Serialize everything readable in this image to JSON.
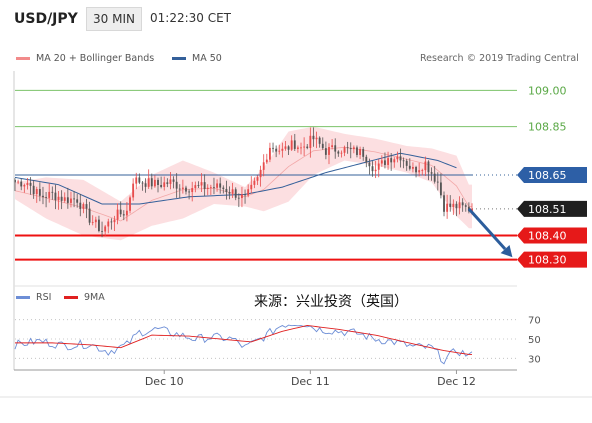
{
  "header": {
    "symbol": "USD/JPY",
    "timeframe": "30 MIN",
    "time": "01:22:30 CET"
  },
  "legend_main": [
    {
      "label": "MA 20 + Bollinger Bands",
      "color": "#f28b8b"
    },
    {
      "label": "MA 50",
      "color": "#34609a"
    }
  ],
  "credit": "Research © 2019 Trading Central",
  "legend_rsi": [
    {
      "label": "RSI",
      "color": "#6d8ed6"
    },
    {
      "label": "9MA",
      "color": "#e02020"
    }
  ],
  "annotation": "来源：兴业投资（英国）",
  "colors": {
    "bull": "#e74c4c",
    "bear": "#555555",
    "green_level": "#7cc36a",
    "ma50": "#34609a",
    "band": "#fbd9dc",
    "red_level": "#ee1111",
    "arrow": "#2c5d9c"
  },
  "chart_data": [
    {
      "type": "candlestick",
      "title": "USD/JPY",
      "ylim": [
        108.22,
        109.08
      ],
      "x_ticks": [
        {
          "label": "Dec 10",
          "x": 48
        },
        {
          "label": "Dec 11",
          "x": 95
        },
        {
          "label": "Dec 12",
          "x": 142
        }
      ],
      "levels": [
        {
          "value": 109.0,
          "label": "109.00",
          "style": "green"
        },
        {
          "value": 108.85,
          "label": "108.85",
          "style": "green"
        },
        {
          "value": 108.65,
          "label": "108.65",
          "style": "resistance"
        },
        {
          "value": 108.51,
          "label": "108.51",
          "style": "last"
        },
        {
          "value": 108.4,
          "label": "108.40",
          "style": "support"
        },
        {
          "value": 108.3,
          "label": "108.30",
          "style": "support"
        }
      ],
      "last_price": 108.51,
      "forecast_arrow": {
        "from": [
          146,
          108.51
        ],
        "to": [
          160,
          108.31
        ]
      },
      "x_count": 148,
      "bollinger_anchors": [
        {
          "x": 0,
          "upper": 108.62,
          "lower": 108.55
        },
        {
          "x": 10,
          "upper": 108.64,
          "lower": 108.47
        },
        {
          "x": 22,
          "upper": 108.63,
          "lower": 108.4
        },
        {
          "x": 34,
          "upper": 108.54,
          "lower": 108.38
        },
        {
          "x": 44,
          "upper": 108.65,
          "lower": 108.44
        },
        {
          "x": 54,
          "upper": 108.71,
          "lower": 108.47
        },
        {
          "x": 64,
          "upper": 108.66,
          "lower": 108.53
        },
        {
          "x": 74,
          "upper": 108.6,
          "lower": 108.52
        },
        {
          "x": 80,
          "upper": 108.68,
          "lower": 108.5
        },
        {
          "x": 88,
          "upper": 108.83,
          "lower": 108.54
        },
        {
          "x": 96,
          "upper": 108.85,
          "lower": 108.65
        },
        {
          "x": 106,
          "upper": 108.82,
          "lower": 108.71
        },
        {
          "x": 116,
          "upper": 108.8,
          "lower": 108.69
        },
        {
          "x": 126,
          "upper": 108.77,
          "lower": 108.66
        },
        {
          "x": 134,
          "upper": 108.76,
          "lower": 108.62
        },
        {
          "x": 142,
          "upper": 108.73,
          "lower": 108.48
        },
        {
          "x": 146,
          "upper": 108.61,
          "lower": 108.43
        }
      ],
      "ma50_anchors": [
        {
          "x": 0,
          "value": 108.64
        },
        {
          "x": 14,
          "value": 108.61
        },
        {
          "x": 28,
          "value": 108.53
        },
        {
          "x": 40,
          "value": 108.53
        },
        {
          "x": 56,
          "value": 108.56
        },
        {
          "x": 74,
          "value": 108.57
        },
        {
          "x": 86,
          "value": 108.6
        },
        {
          "x": 100,
          "value": 108.66
        },
        {
          "x": 112,
          "value": 108.7
        },
        {
          "x": 124,
          "value": 108.74
        },
        {
          "x": 136,
          "value": 108.71
        },
        {
          "x": 142,
          "value": 108.68
        }
      ],
      "price_anchors": [
        {
          "x": 0,
          "value": 108.62
        },
        {
          "x": 4,
          "value": 108.62
        },
        {
          "x": 8,
          "value": 108.56
        },
        {
          "x": 12,
          "value": 108.57
        },
        {
          "x": 16,
          "value": 108.55
        },
        {
          "x": 20,
          "value": 108.55
        },
        {
          "x": 24,
          "value": 108.47
        },
        {
          "x": 28,
          "value": 108.42
        },
        {
          "x": 32,
          "value": 108.48
        },
        {
          "x": 36,
          "value": 108.5
        },
        {
          "x": 38,
          "value": 108.63
        },
        {
          "x": 42,
          "value": 108.62
        },
        {
          "x": 46,
          "value": 108.61
        },
        {
          "x": 50,
          "value": 108.62
        },
        {
          "x": 54,
          "value": 108.6
        },
        {
          "x": 58,
          "value": 108.6
        },
        {
          "x": 62,
          "value": 108.6
        },
        {
          "x": 66,
          "value": 108.6
        },
        {
          "x": 70,
          "value": 108.58
        },
        {
          "x": 74,
          "value": 108.55
        },
        {
          "x": 78,
          "value": 108.63
        },
        {
          "x": 82,
          "value": 108.77
        },
        {
          "x": 86,
          "value": 108.75
        },
        {
          "x": 90,
          "value": 108.78
        },
        {
          "x": 92,
          "value": 108.76
        },
        {
          "x": 96,
          "value": 108.8
        },
        {
          "x": 100,
          "value": 108.75
        },
        {
          "x": 104,
          "value": 108.76
        },
        {
          "x": 108,
          "value": 108.75
        },
        {
          "x": 112,
          "value": 108.74
        },
        {
          "x": 116,
          "value": 108.67
        },
        {
          "x": 120,
          "value": 108.72
        },
        {
          "x": 124,
          "value": 108.73
        },
        {
          "x": 128,
          "value": 108.67
        },
        {
          "x": 132,
          "value": 108.7
        },
        {
          "x": 136,
          "value": 108.62
        },
        {
          "x": 138,
          "value": 108.52
        },
        {
          "x": 142,
          "value": 108.52
        },
        {
          "x": 146,
          "value": 108.51
        }
      ]
    },
    {
      "type": "line",
      "title": "RSI",
      "ylim": [
        20,
        80
      ],
      "yticks": [
        30,
        50,
        70
      ],
      "series": [
        {
          "name": "RSI",
          "anchors": [
            {
              "x": 0,
              "value": 44
            },
            {
              "x": 8,
              "value": 48
            },
            {
              "x": 16,
              "value": 43
            },
            {
              "x": 24,
              "value": 45
            },
            {
              "x": 30,
              "value": 37
            },
            {
              "x": 36,
              "value": 44
            },
            {
              "x": 40,
              "value": 57
            },
            {
              "x": 46,
              "value": 60
            },
            {
              "x": 52,
              "value": 55
            },
            {
              "x": 58,
              "value": 50
            },
            {
              "x": 64,
              "value": 52
            },
            {
              "x": 70,
              "value": 50
            },
            {
              "x": 74,
              "value": 41
            },
            {
              "x": 80,
              "value": 52
            },
            {
              "x": 86,
              "value": 65
            },
            {
              "x": 92,
              "value": 67
            },
            {
              "x": 98,
              "value": 60
            },
            {
              "x": 104,
              "value": 58
            },
            {
              "x": 110,
              "value": 56
            },
            {
              "x": 116,
              "value": 50
            },
            {
              "x": 122,
              "value": 47
            },
            {
              "x": 128,
              "value": 42
            },
            {
              "x": 134,
              "value": 41
            },
            {
              "x": 138,
              "value": 28
            },
            {
              "x": 142,
              "value": 38
            },
            {
              "x": 146,
              "value": 33
            }
          ]
        },
        {
          "name": "9MA",
          "anchors": [
            {
              "x": 0,
              "value": 46
            },
            {
              "x": 12,
              "value": 46
            },
            {
              "x": 24,
              "value": 44
            },
            {
              "x": 34,
              "value": 41
            },
            {
              "x": 44,
              "value": 54
            },
            {
              "x": 56,
              "value": 53
            },
            {
              "x": 66,
              "value": 50
            },
            {
              "x": 76,
              "value": 47
            },
            {
              "x": 86,
              "value": 58
            },
            {
              "x": 94,
              "value": 64
            },
            {
              "x": 104,
              "value": 60
            },
            {
              "x": 116,
              "value": 54
            },
            {
              "x": 128,
              "value": 45
            },
            {
              "x": 138,
              "value": 38
            },
            {
              "x": 146,
              "value": 34
            }
          ]
        }
      ]
    }
  ]
}
